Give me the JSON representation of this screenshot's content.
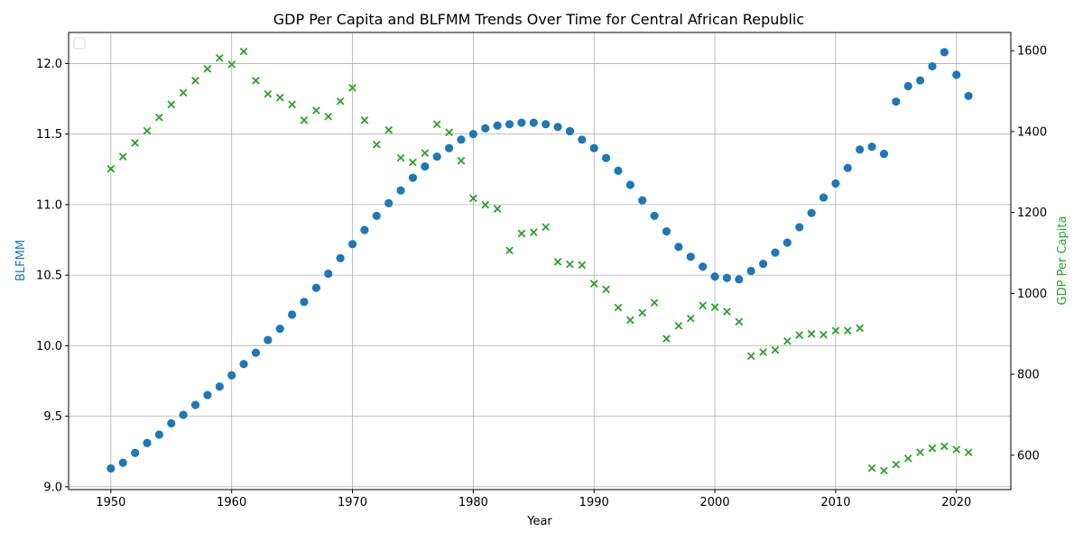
{
  "chart_data": {
    "type": "scatter",
    "title": "GDP Per Capita and BLFMM Trends Over Time for Central African Republic",
    "xlabel": "Year",
    "ylabel_left": "BLFMM",
    "ylabel_right": "GDP Per Capita",
    "xlim": [
      1946.5,
      2024.5
    ],
    "ylim_left": [
      8.98,
      12.22
    ],
    "ylim_right": [
      515,
      1645
    ],
    "x_ticks": [
      1950,
      1960,
      1970,
      1980,
      1990,
      2000,
      2010,
      2020
    ],
    "y_ticks_left": [
      9.0,
      9.5,
      10.0,
      10.5,
      11.0,
      11.5,
      12.0
    ],
    "y_ticks_right": [
      600,
      800,
      1000,
      1200,
      1400,
      1600
    ],
    "grid": true,
    "legend": "upper-left, empty",
    "colors": {
      "blfmm": "#1f77b4",
      "gdp": "#2ca02c"
    },
    "series": [
      {
        "key": "blfmm",
        "axis": "left",
        "marker": "circle",
        "points": [
          [
            1950,
            9.13
          ],
          [
            1951,
            9.17
          ],
          [
            1952,
            9.24
          ],
          [
            1953,
            9.31
          ],
          [
            1954,
            9.37
          ],
          [
            1955,
            9.45
          ],
          [
            1956,
            9.51
          ],
          [
            1957,
            9.58
          ],
          [
            1958,
            9.65
          ],
          [
            1959,
            9.71
          ],
          [
            1960,
            9.79
          ],
          [
            1961,
            9.87
          ],
          [
            1962,
            9.95
          ],
          [
            1963,
            10.04
          ],
          [
            1964,
            10.12
          ],
          [
            1965,
            10.22
          ],
          [
            1966,
            10.31
          ],
          [
            1967,
            10.41
          ],
          [
            1968,
            10.51
          ],
          [
            1969,
            10.62
          ],
          [
            1970,
            10.72
          ],
          [
            1971,
            10.82
          ],
          [
            1972,
            10.92
          ],
          [
            1973,
            11.01
          ],
          [
            1974,
            11.1
          ],
          [
            1975,
            11.19
          ],
          [
            1976,
            11.27
          ],
          [
            1977,
            11.34
          ],
          [
            1978,
            11.4
          ],
          [
            1979,
            11.46
          ],
          [
            1980,
            11.5
          ],
          [
            1981,
            11.54
          ],
          [
            1982,
            11.56
          ],
          [
            1983,
            11.57
          ],
          [
            1984,
            11.58
          ],
          [
            1985,
            11.58
          ],
          [
            1986,
            11.57
          ],
          [
            1987,
            11.55
          ],
          [
            1988,
            11.52
          ],
          [
            1989,
            11.46
          ],
          [
            1990,
            11.4
          ],
          [
            1991,
            11.33
          ],
          [
            1992,
            11.24
          ],
          [
            1993,
            11.14
          ],
          [
            1994,
            11.03
          ],
          [
            1995,
            10.92
          ],
          [
            1996,
            10.81
          ],
          [
            1997,
            10.7
          ],
          [
            1998,
            10.63
          ],
          [
            1999,
            10.56
          ],
          [
            2000,
            10.49
          ],
          [
            2001,
            10.48
          ],
          [
            2002,
            10.47
          ],
          [
            2003,
            10.53
          ],
          [
            2004,
            10.58
          ],
          [
            2005,
            10.66
          ],
          [
            2006,
            10.73
          ],
          [
            2007,
            10.84
          ],
          [
            2008,
            10.94
          ],
          [
            2009,
            11.05
          ],
          [
            2010,
            11.15
          ],
          [
            2011,
            11.26
          ],
          [
            2012,
            11.39
          ],
          [
            2013,
            11.41
          ],
          [
            2014,
            11.36
          ],
          [
            2015,
            11.73
          ],
          [
            2016,
            11.84
          ],
          [
            2017,
            11.88
          ],
          [
            2018,
            11.98
          ],
          [
            2019,
            12.08
          ],
          [
            2020,
            11.92
          ],
          [
            2021,
            11.77
          ]
        ]
      },
      {
        "key": "gdp",
        "axis": "right",
        "marker": "x",
        "points": [
          [
            1950,
            1308
          ],
          [
            1951,
            1338
          ],
          [
            1952,
            1372
          ],
          [
            1953,
            1402
          ],
          [
            1954,
            1435
          ],
          [
            1955,
            1467
          ],
          [
            1956,
            1496
          ],
          [
            1957,
            1526
          ],
          [
            1958,
            1555
          ],
          [
            1959,
            1582
          ],
          [
            1960,
            1566
          ],
          [
            1961,
            1598
          ],
          [
            1962,
            1526
          ],
          [
            1963,
            1493
          ],
          [
            1964,
            1484
          ],
          [
            1965,
            1467
          ],
          [
            1966,
            1428
          ],
          [
            1967,
            1452
          ],
          [
            1968,
            1437
          ],
          [
            1969,
            1475
          ],
          [
            1970,
            1508
          ],
          [
            1971,
            1428
          ],
          [
            1972,
            1368
          ],
          [
            1973,
            1404
          ],
          [
            1974,
            1335
          ],
          [
            1975,
            1324
          ],
          [
            1976,
            1347
          ],
          [
            1977,
            1418
          ],
          [
            1978,
            1398
          ],
          [
            1979,
            1328
          ],
          [
            1980,
            1235
          ],
          [
            1981,
            1219
          ],
          [
            1982,
            1209
          ],
          [
            1983,
            1106
          ],
          [
            1984,
            1148
          ],
          [
            1985,
            1151
          ],
          [
            1986,
            1164
          ],
          [
            1987,
            1078
          ],
          [
            1988,
            1072
          ],
          [
            1989,
            1070
          ],
          [
            1990,
            1024
          ],
          [
            1991,
            1010
          ],
          [
            1992,
            965
          ],
          [
            1993,
            934
          ],
          [
            1994,
            952
          ],
          [
            1995,
            977
          ],
          [
            1996,
            888
          ],
          [
            1997,
            920
          ],
          [
            1998,
            938
          ],
          [
            1999,
            970
          ],
          [
            2000,
            966
          ],
          [
            2001,
            955
          ],
          [
            2002,
            930
          ],
          [
            2003,
            845
          ],
          [
            2004,
            855
          ],
          [
            2005,
            860
          ],
          [
            2006,
            882
          ],
          [
            2007,
            897
          ],
          [
            2008,
            900
          ],
          [
            2009,
            898
          ],
          [
            2010,
            908
          ],
          [
            2011,
            908
          ],
          [
            2012,
            914
          ],
          [
            2013,
            568
          ],
          [
            2014,
            562
          ],
          [
            2015,
            577
          ],
          [
            2016,
            592
          ],
          [
            2017,
            607
          ],
          [
            2018,
            617
          ],
          [
            2019,
            622
          ],
          [
            2020,
            614
          ],
          [
            2021,
            607
          ]
        ]
      }
    ]
  }
}
